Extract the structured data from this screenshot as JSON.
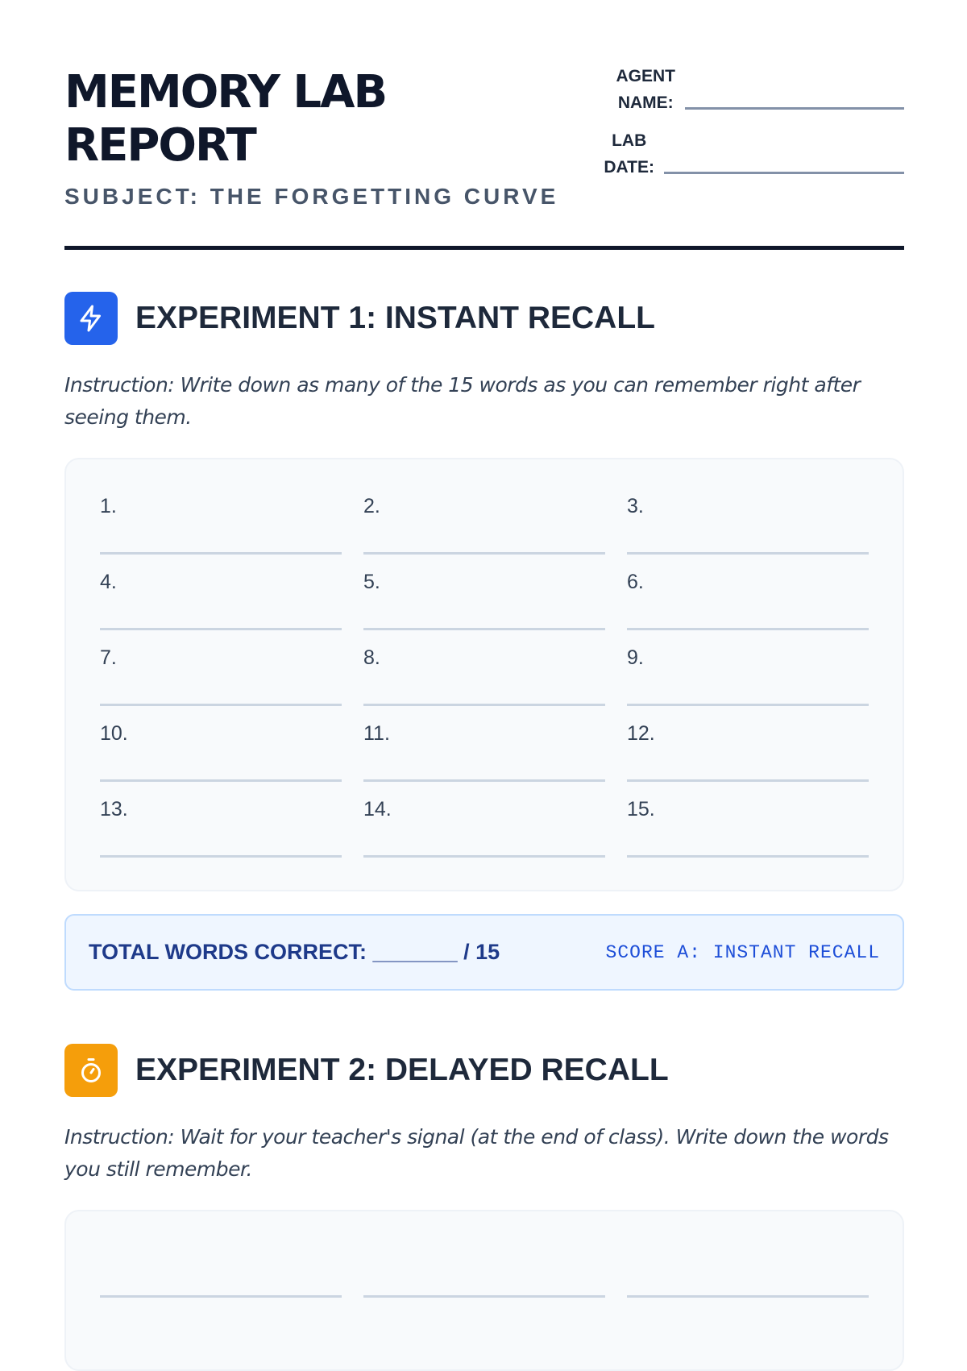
{
  "header": {
    "title_line1": "MEMORY LAB",
    "title_line2": "REPORT",
    "subject": "SUBJECT: THE FORGETTING CURVE",
    "agent_name_label_1": "AGENT",
    "agent_name_label_2": "NAME:",
    "lab_date_label_1": "LAB",
    "lab_date_label_2": "DATE:"
  },
  "experiment1": {
    "icon": "lightning-icon",
    "icon_color": "#2563eb",
    "title": "EXPERIMENT 1: INSTANT RECALL",
    "instruction": "Instruction: Write down as many of the 15 words as you can remember right after seeing them.",
    "items": [
      "1.",
      "2.",
      "3.",
      "4.",
      "5.",
      "6.",
      "7.",
      "8.",
      "9.",
      "10.",
      "11.",
      "12.",
      "13.",
      "14.",
      "15."
    ]
  },
  "score": {
    "label": "TOTAL WORDS CORRECT: _______ / 15",
    "tag": "SCORE A: INSTANT RECALL"
  },
  "experiment2": {
    "icon": "stopwatch-icon",
    "icon_color": "#f59e0b",
    "title": "EXPERIMENT 2: DELAYED RECALL",
    "instruction": "Instruction: Wait for your teacher's signal (at the end of class). Write down the words you still remember."
  }
}
